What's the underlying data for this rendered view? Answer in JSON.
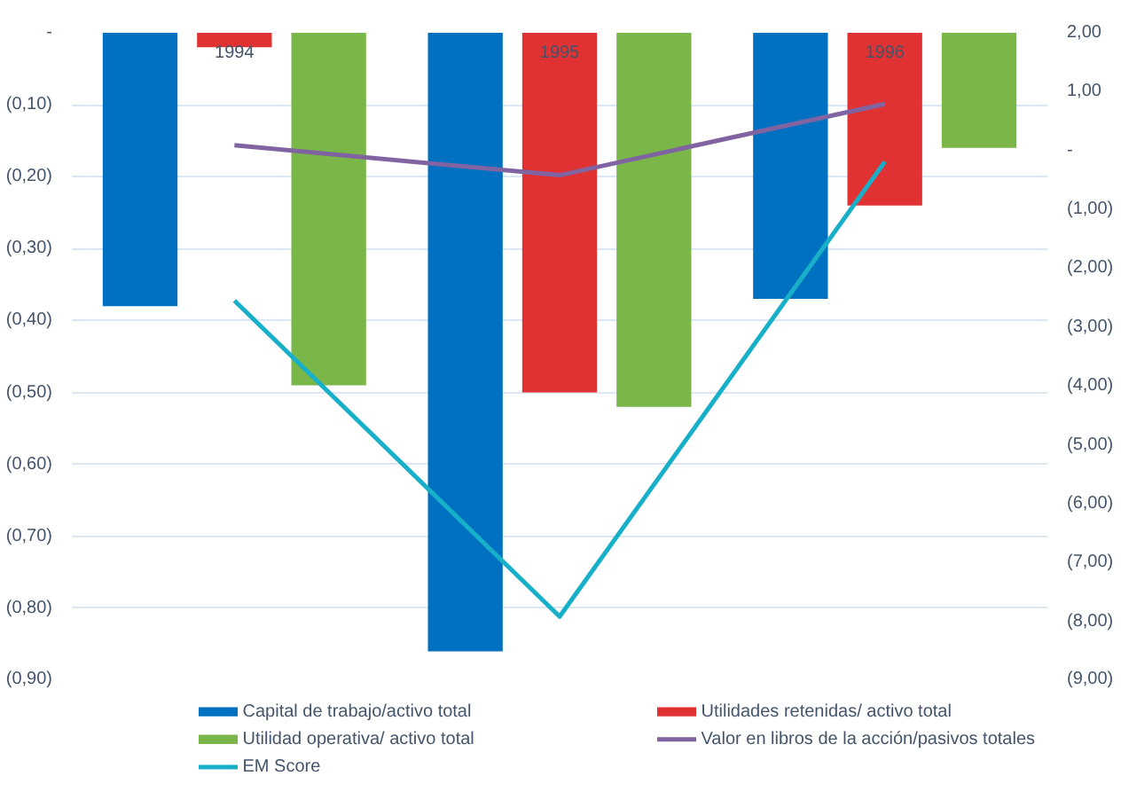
{
  "chart_data": {
    "type": "bar",
    "categories": [
      "1994",
      "1995",
      "1996"
    ],
    "series": [
      {
        "name": "Capital de trabajo/activo total",
        "color": "#0070c0",
        "values": [
          -0.38,
          -0.86,
          -0.37
        ]
      },
      {
        "name": "Utilidades retenidas/ activo total",
        "color": "#e03232",
        "values": [
          -0.02,
          -0.5,
          -0.24
        ]
      },
      {
        "name": "Utilidad operativa/ activo total",
        "color": "#7ab648",
        "values": [
          -0.49,
          -0.52,
          -0.16
        ]
      },
      {
        "name": "Valor en libros de la acción/pasivos totales",
        "color": "#8064a2",
        "type": "line",
        "axis": "y2",
        "values": [
          0.09,
          -0.42,
          0.79
        ]
      },
      {
        "name": "EM Score",
        "color": "#17b0c8",
        "type": "line",
        "axis": "y2",
        "values": [
          -2.55,
          -7.92,
          -0.19
        ]
      }
    ],
    "ylim": [
      -0.9,
      0
    ],
    "yticks": [
      {
        "value": 0,
        "label": "-"
      },
      {
        "value": -0.1,
        "label": "(0,10)"
      },
      {
        "value": -0.2,
        "label": "(0,20)"
      },
      {
        "value": -0.3,
        "label": "(0,30)"
      },
      {
        "value": -0.4,
        "label": "(0,40)"
      },
      {
        "value": -0.5,
        "label": "(0,50)"
      },
      {
        "value": -0.6,
        "label": "(0,60)"
      },
      {
        "value": -0.7,
        "label": "(0,70)"
      },
      {
        "value": -0.8,
        "label": "(0,80)"
      },
      {
        "value": -0.9,
        "label": "(0,90)"
      }
    ],
    "y2lim": [
      -9,
      2
    ],
    "y2ticks": [
      {
        "value": 2,
        "label": "2,00"
      },
      {
        "value": 1,
        "label": "1,00"
      },
      {
        "value": 0,
        "label": "-"
      },
      {
        "value": -1,
        "label": "(1,00)"
      },
      {
        "value": -2,
        "label": "(2,00)"
      },
      {
        "value": -3,
        "label": "(3,00)"
      },
      {
        "value": -4,
        "label": "(4,00)"
      },
      {
        "value": -5,
        "label": "(5,00)"
      },
      {
        "value": -6,
        "label": "(6,00)"
      },
      {
        "value": -7,
        "label": "(7,00)"
      },
      {
        "value": -8,
        "label": "(8,00)"
      },
      {
        "value": -9,
        "label": "(9,00)"
      }
    ],
    "grid": "y",
    "legend": "bottom",
    "line_style": "solid",
    "marker": "none"
  }
}
